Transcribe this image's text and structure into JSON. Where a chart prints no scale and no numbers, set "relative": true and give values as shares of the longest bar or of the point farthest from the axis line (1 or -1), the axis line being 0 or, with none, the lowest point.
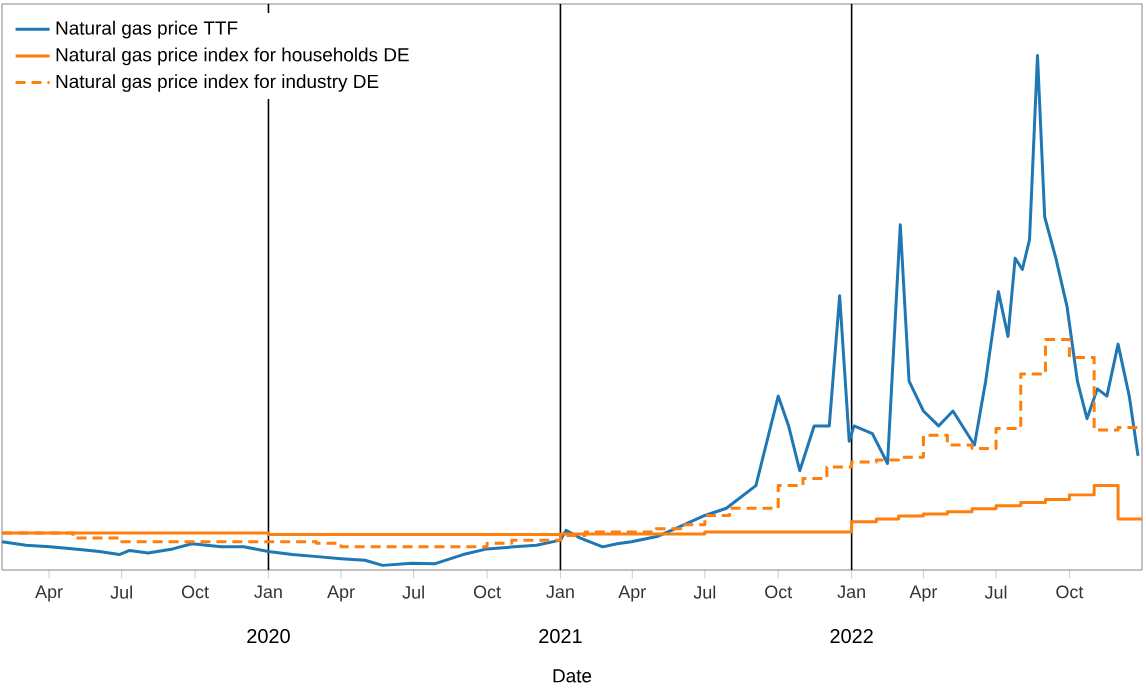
{
  "chart_data": {
    "type": "line",
    "xlabel": "Date",
    "relative": true,
    "legend": "top left",
    "xlim": [
      "2019-02-01",
      "2022-12-31"
    ],
    "xticks": [
      {
        "value": "2019-04-01",
        "label": "Apr"
      },
      {
        "value": "2019-07-01",
        "label": "Jul"
      },
      {
        "value": "2019-10-01",
        "label": "Oct"
      },
      {
        "value": "2020-01-01",
        "label": "Jan"
      },
      {
        "value": "2020-04-01",
        "label": "Apr"
      },
      {
        "value": "2020-07-01",
        "label": "Jul"
      },
      {
        "value": "2020-10-01",
        "label": "Oct"
      },
      {
        "value": "2021-01-01",
        "label": "Jan"
      },
      {
        "value": "2021-04-01",
        "label": "Apr"
      },
      {
        "value": "2021-07-01",
        "label": "Jul"
      },
      {
        "value": "2021-10-01",
        "label": "Oct"
      },
      {
        "value": "2022-01-01",
        "label": "Jan"
      },
      {
        "value": "2022-04-01",
        "label": "Apr"
      },
      {
        "value": "2022-07-01",
        "label": "Jul"
      },
      {
        "value": "2022-10-01",
        "label": "Oct"
      }
    ],
    "annotations": [
      "2020",
      "2021",
      "2022"
    ],
    "ref_lines": [
      {
        "axis": "x",
        "value": "2020-01-01",
        "color": "#000000"
      },
      {
        "axis": "x",
        "value": "2021-01-01",
        "color": "#000000"
      },
      {
        "axis": "x",
        "value": "2022-01-01",
        "color": "#000000"
      }
    ],
    "series": [
      {
        "name": "Natural gas price TTF",
        "color": "#1f77b4",
        "line_style": "solid",
        "x": [
          "2019-02-01",
          "2019-03-03",
          "2019-04-02",
          "2019-05-03",
          "2019-06-03",
          "2019-06-28",
          "2019-07-11",
          "2019-08-03",
          "2019-09-03",
          "2019-09-27",
          "2019-11-03",
          "2019-12-01",
          "2020-01-01",
          "2020-01-31",
          "2020-03-02",
          "2020-04-01",
          "2020-05-01",
          "2020-05-23",
          "2020-06-29",
          "2020-07-27",
          "2020-09-01",
          "2020-10-01",
          "2020-11-04",
          "2020-12-02",
          "2021-01-01",
          "2021-01-08",
          "2021-01-26",
          "2021-02-23",
          "2021-03-13",
          "2021-03-31",
          "2021-05-02",
          "2021-05-30",
          "2021-07-01",
          "2021-07-28",
          "2021-09-03",
          "2021-10-01",
          "2021-10-14",
          "2021-10-28",
          "2021-11-15",
          "2021-12-04",
          "2021-12-17",
          "2021-12-29",
          "2022-01-04",
          "2022-01-27",
          "2022-02-15",
          "2022-03-03",
          "2022-03-14",
          "2022-04-01",
          "2022-04-20",
          "2022-05-08",
          "2022-06-04",
          "2022-06-18",
          "2022-07-04",
          "2022-07-16",
          "2022-07-25",
          "2022-08-03",
          "2022-08-12",
          "2022-08-22",
          "2022-08-31",
          "2022-09-14",
          "2022-09-28",
          "2022-10-11",
          "2022-10-23",
          "2022-11-05",
          "2022-11-17",
          "2022-12-01",
          "2022-12-15",
          "2022-12-26"
        ],
        "values": [
          0.055,
          0.048,
          0.045,
          0.041,
          0.036,
          0.03,
          0.038,
          0.033,
          0.041,
          0.051,
          0.045,
          0.045,
          0.036,
          0.03,
          0.026,
          0.022,
          0.019,
          0.009,
          0.013,
          0.012,
          0.03,
          0.041,
          0.045,
          0.048,
          0.058,
          0.077,
          0.062,
          0.045,
          0.051,
          0.055,
          0.065,
          0.084,
          0.106,
          0.12,
          0.164,
          0.338,
          0.28,
          0.193,
          0.28,
          0.28,
          0.533,
          0.25,
          0.28,
          0.265,
          0.207,
          0.671,
          0.367,
          0.309,
          0.28,
          0.309,
          0.243,
          0.367,
          0.541,
          0.454,
          0.606,
          0.584,
          0.642,
          1.0,
          0.686,
          0.606,
          0.512,
          0.367,
          0.294,
          0.352,
          0.338,
          0.439,
          0.338,
          0.222
        ]
      },
      {
        "name": "Natural gas price index for households DE",
        "color": "#ff7f0e",
        "type": "step",
        "line_style": "solid",
        "x": [
          "2019-02-01",
          "2020-01-01",
          "2021-01-01",
          "2021-07-01",
          "2022-01-01",
          "2022-02-01",
          "2022-03-01",
          "2022-04-01",
          "2022-05-01",
          "2022-06-01",
          "2022-07-01",
          "2022-08-01",
          "2022-09-01",
          "2022-10-01",
          "2022-11-01",
          "2022-12-01",
          "2022-12-31"
        ],
        "values": [
          0.072,
          0.069,
          0.07,
          0.074,
          0.094,
          0.099,
          0.105,
          0.109,
          0.113,
          0.119,
          0.125,
          0.131,
          0.137,
          0.146,
          0.164,
          0.099,
          0.099
        ]
      },
      {
        "name": "Natural gas price index for industry DE",
        "color": "#ff7f0e",
        "type": "step",
        "line_style": "dashed",
        "x": [
          "2019-02-01",
          "2019-05-01",
          "2019-07-01",
          "2020-03-01",
          "2020-04-01",
          "2020-10-01",
          "2020-11-01",
          "2021-01-01",
          "2021-02-01",
          "2021-05-01",
          "2021-06-01",
          "2021-07-01",
          "2021-08-01",
          "2021-10-01",
          "2021-11-01",
          "2021-12-01",
          "2022-01-01",
          "2022-02-01",
          "2022-03-01",
          "2022-04-01",
          "2022-05-01",
          "2022-06-01",
          "2022-07-01",
          "2022-08-01",
          "2022-09-01",
          "2022-10-01",
          "2022-11-01",
          "2022-12-01",
          "2022-12-31"
        ],
        "values": [
          0.072,
          0.062,
          0.055,
          0.052,
          0.045,
          0.052,
          0.058,
          0.067,
          0.074,
          0.08,
          0.088,
          0.106,
          0.12,
          0.164,
          0.178,
          0.2,
          0.21,
          0.214,
          0.219,
          0.262,
          0.243,
          0.236,
          0.275,
          0.381,
          0.448,
          0.413,
          0.272,
          0.277,
          0.277
        ]
      }
    ]
  }
}
